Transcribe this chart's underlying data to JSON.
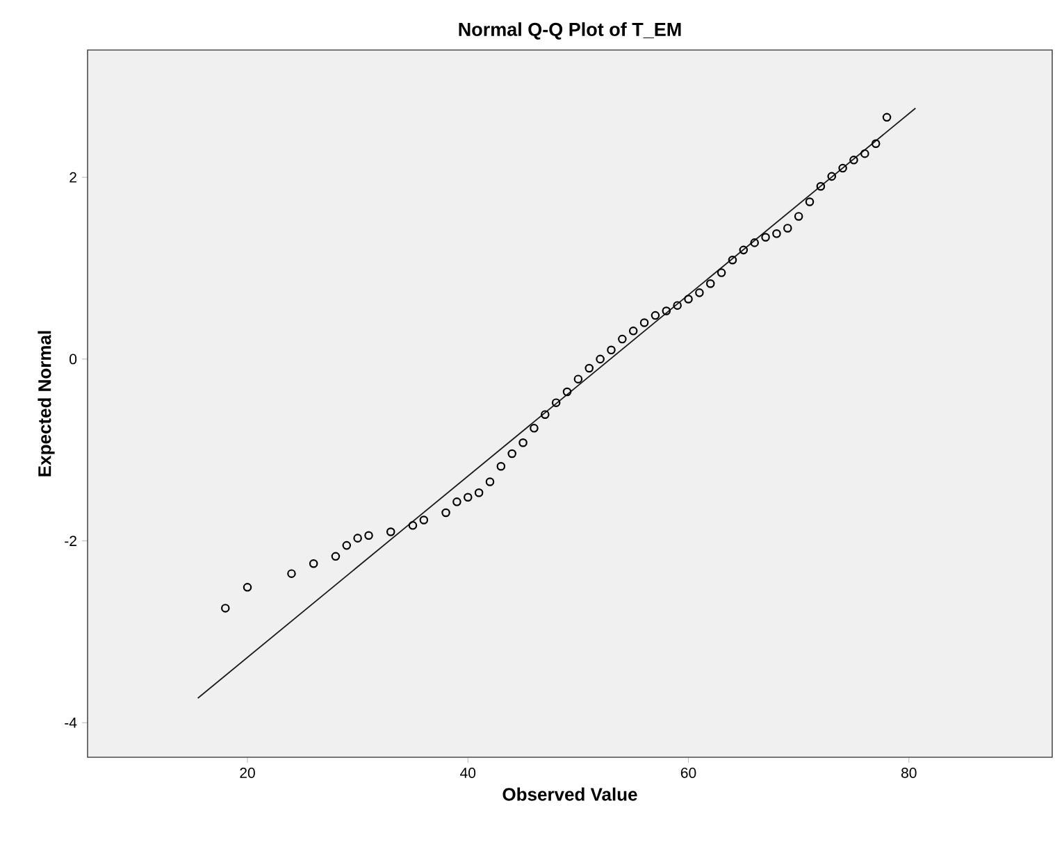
{
  "chart_data": {
    "type": "scatter",
    "title": "Normal Q-Q Plot of T_EM",
    "xlabel": "Observed Value",
    "ylabel": "Expected Normal",
    "xlim": [
      5.5,
      93
    ],
    "ylim": [
      -4.38,
      3.4
    ],
    "xticks": [
      20,
      40,
      60,
      80
    ],
    "yticks": [
      -4,
      -2,
      0,
      2
    ],
    "series": [
      {
        "marker": "circle",
        "color": "#000000",
        "x": [
          18,
          20,
          24,
          26,
          28,
          29,
          30,
          31,
          33,
          35,
          36,
          38,
          39,
          40,
          41,
          42,
          43,
          44,
          45,
          46,
          47,
          48,
          49,
          50,
          51,
          52,
          53,
          54,
          55,
          56,
          57,
          58,
          59,
          60,
          61,
          62,
          63,
          64,
          65,
          66,
          67,
          68,
          69,
          70,
          71,
          72,
          73,
          74,
          75,
          76,
          77,
          78
        ],
        "values": [
          -2.74,
          -2.51,
          -2.36,
          -2.25,
          -2.17,
          -2.05,
          -1.97,
          -1.94,
          -1.9,
          -1.83,
          -1.77,
          -1.69,
          -1.57,
          -1.52,
          -1.47,
          -1.35,
          -1.18,
          -1.04,
          -0.92,
          -0.76,
          -0.61,
          -0.48,
          -0.36,
          -0.22,
          -0.1,
          0.0,
          0.1,
          0.22,
          0.31,
          0.4,
          0.48,
          0.53,
          0.59,
          0.66,
          0.73,
          0.83,
          0.95,
          1.09,
          1.2,
          1.28,
          1.34,
          1.38,
          1.44,
          1.57,
          1.73,
          1.9,
          2.01,
          2.1,
          2.19,
          2.26,
          2.37,
          2.66
        ]
      },
      {
        "type": "line",
        "color": "#1a1a1a",
        "line_style": "solid",
        "x": [
          15.5,
          80.6
        ],
        "values": [
          -3.73,
          2.76
        ]
      }
    ]
  }
}
